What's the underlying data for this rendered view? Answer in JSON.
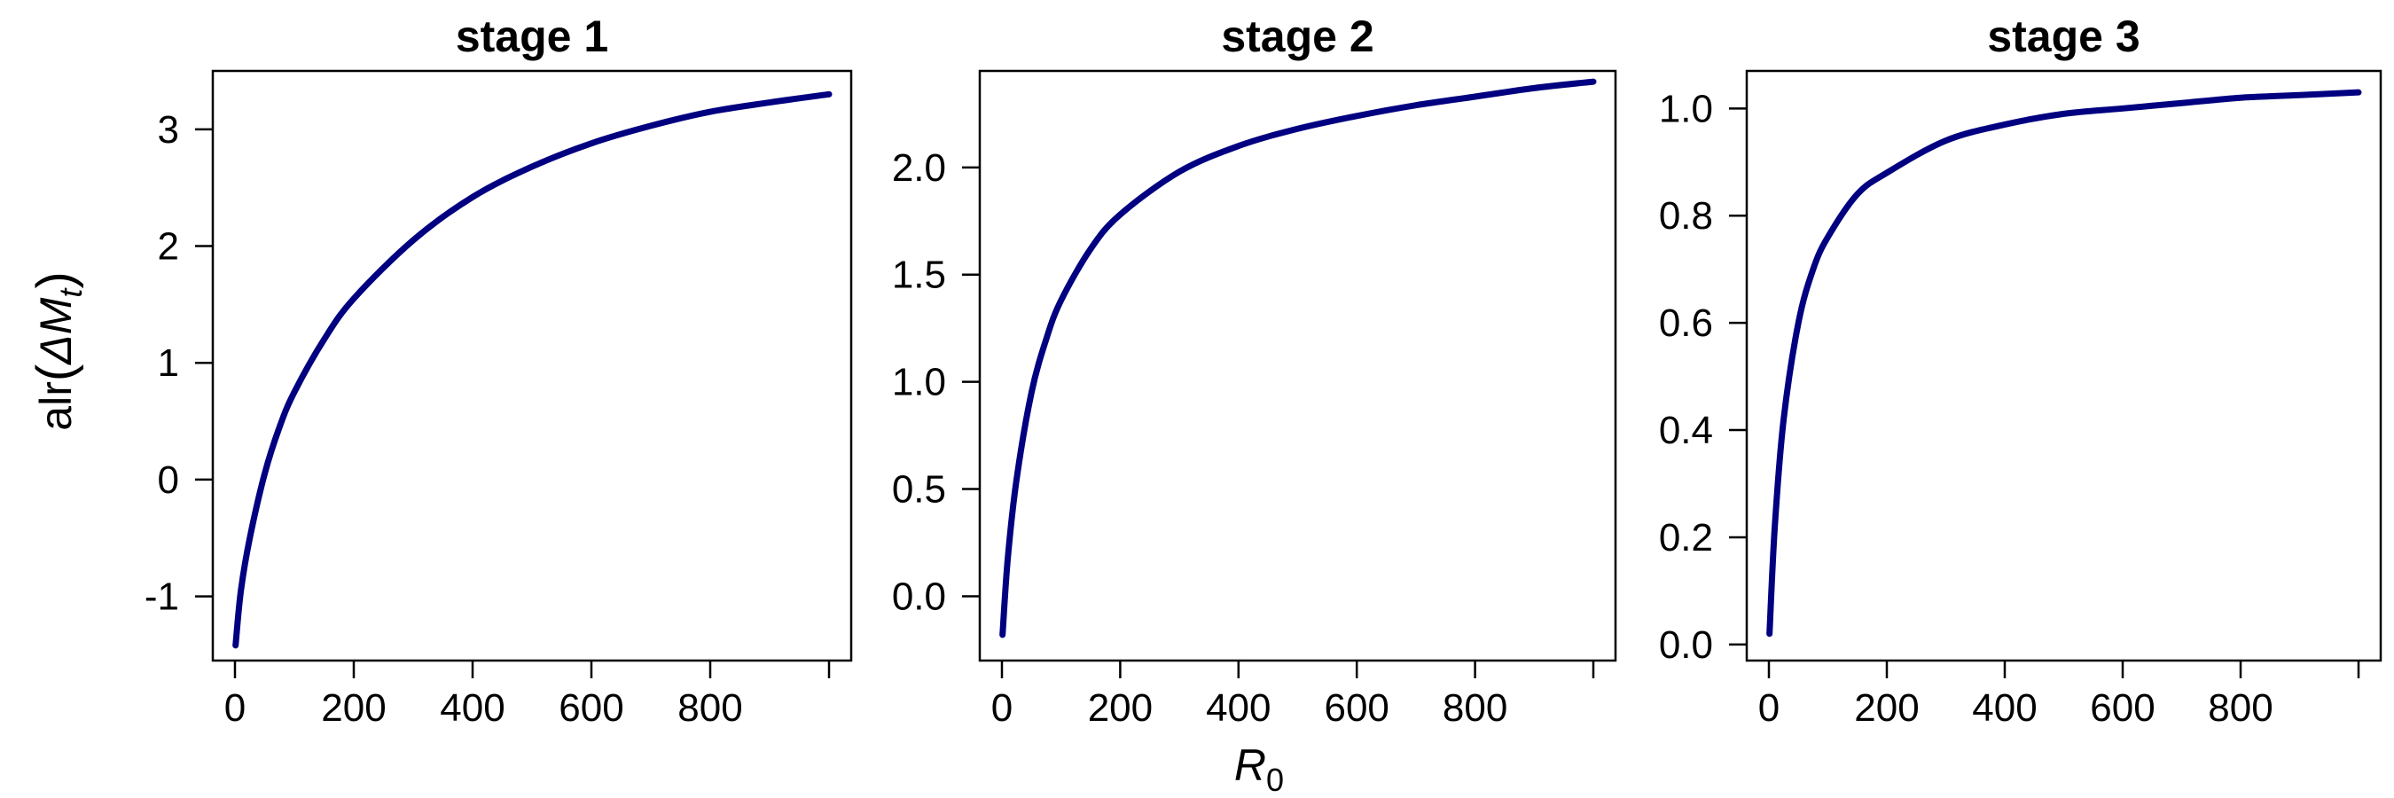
{
  "figure": {
    "ylabel_prefix": "alr",
    "ylabel_symbol": "ΔM",
    "ylabel_subscript": "t",
    "xlabel_symbol": "R",
    "xlabel_subscript": "0",
    "line_color": "#000080"
  },
  "chart_data": [
    {
      "type": "line",
      "title": "stage 1",
      "xlabel": "R0",
      "ylabel": "alr(ΔMt)",
      "xlim": [
        0,
        1000
      ],
      "ylim": [
        -1.55,
        3.5
      ],
      "xticks": [
        0,
        200,
        400,
        600,
        800,
        1000
      ],
      "xtick_labels": [
        "0",
        "200",
        "400",
        "600",
        "800",
        ""
      ],
      "yticks": [
        -1,
        0,
        1,
        2,
        3
      ],
      "ytick_labels": [
        "-1",
        "0",
        "1",
        "2",
        "3"
      ],
      "series": [
        {
          "x": [
            1,
            10,
            25,
            50,
            75,
            100,
            150,
            200,
            300,
            400,
            500,
            600,
            700,
            800,
            900,
            1000
          ],
          "values": [
            -1.42,
            -0.95,
            -0.5,
            0.05,
            0.45,
            0.75,
            1.2,
            1.55,
            2.05,
            2.42,
            2.68,
            2.88,
            3.03,
            3.15,
            3.23,
            3.3
          ]
        }
      ]
    },
    {
      "type": "line",
      "title": "stage 2",
      "xlim": [
        0,
        1000
      ],
      "ylim": [
        -0.3,
        2.45
      ],
      "xticks": [
        0,
        200,
        400,
        600,
        800,
        1000
      ],
      "xtick_labels": [
        "0",
        "200",
        "400",
        "600",
        "800",
        ""
      ],
      "yticks": [
        0,
        0.5,
        1,
        1.5,
        2
      ],
      "ytick_labels": [
        "0.0",
        "0.5",
        "1.0",
        "1.5",
        "2.0"
      ],
      "series": [
        {
          "x": [
            1,
            10,
            25,
            50,
            75,
            100,
            150,
            200,
            300,
            400,
            500,
            600,
            700,
            800,
            900,
            1000
          ],
          "values": [
            -0.18,
            0.18,
            0.55,
            0.95,
            1.2,
            1.38,
            1.62,
            1.78,
            1.98,
            2.1,
            2.18,
            2.24,
            2.29,
            2.33,
            2.37,
            2.4
          ]
        }
      ]
    },
    {
      "type": "line",
      "title": "stage 3",
      "xlim": [
        0,
        1000
      ],
      "ylim": [
        -0.03,
        1.07
      ],
      "xticks": [
        0,
        200,
        400,
        600,
        800,
        1000
      ],
      "xtick_labels": [
        "0",
        "200",
        "400",
        "600",
        "800",
        ""
      ],
      "yticks": [
        0,
        0.2,
        0.4,
        0.6,
        0.8,
        1.0
      ],
      "ytick_labels": [
        "0.0",
        "0.2",
        "0.4",
        "0.6",
        "0.8",
        "1.0"
      ],
      "series": [
        {
          "x": [
            1,
            10,
            25,
            50,
            75,
            100,
            150,
            200,
            300,
            400,
            500,
            600,
            700,
            800,
            900,
            1000
          ],
          "values": [
            0.02,
            0.22,
            0.42,
            0.6,
            0.7,
            0.76,
            0.84,
            0.88,
            0.94,
            0.97,
            0.99,
            1.0,
            1.01,
            1.02,
            1.025,
            1.03
          ]
        }
      ]
    }
  ]
}
